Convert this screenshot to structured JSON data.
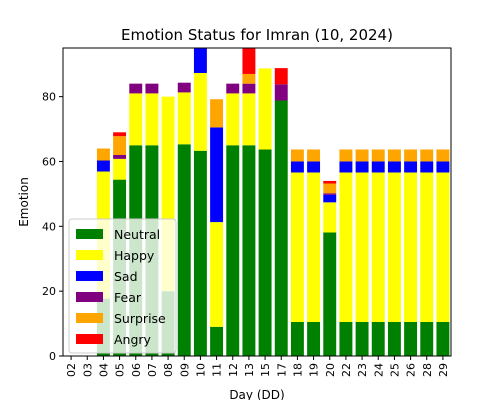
{
  "chart_data": {
    "type": "bar",
    "stacked": true,
    "title": "Emotion Status for Imran (10, 2024)",
    "xlabel": "Day (DD)",
    "ylabel": "Emotion",
    "categories": [
      "02",
      "03",
      "04",
      "05",
      "06",
      "07",
      "08",
      "09",
      "10",
      "11",
      "12",
      "13",
      "15",
      "17",
      "18",
      "19",
      "20",
      "22",
      "23",
      "24",
      "25",
      "26",
      "28",
      "29"
    ],
    "ylim": [
      0,
      95
    ],
    "yticks": [
      0,
      20,
      40,
      60,
      80
    ],
    "grid": false,
    "legend_position": "lower-left",
    "series": [
      {
        "name": "Neutral",
        "color": "#008000",
        "values": [
          0,
          0,
          17.7,
          54.4,
          65,
          65,
          20,
          65.3,
          63.3,
          9,
          65,
          65,
          63.7,
          78.8,
          10.5,
          10.5,
          38.1,
          10.5,
          10.5,
          10.5,
          10.5,
          10.5,
          10.5,
          10.5
        ]
      },
      {
        "name": "Happy",
        "color": "#ffff00",
        "values": [
          0,
          0,
          39.2,
          6.4,
          16,
          16,
          60,
          16,
          24,
          32.3,
          16,
          16,
          25,
          0,
          46.1,
          46.1,
          9.3,
          46.1,
          46.1,
          46.1,
          46.1,
          46.1,
          46.1,
          46.1
        ]
      },
      {
        "name": "Sad",
        "color": "#0000ff",
        "values": [
          0,
          0,
          3.4,
          0,
          0,
          0,
          0,
          0,
          8,
          29.2,
          0,
          0,
          0,
          0,
          3.4,
          3.4,
          2.3,
          3.4,
          3.4,
          3.4,
          3.4,
          3.4,
          3.4,
          3.4
        ]
      },
      {
        "name": "Fear",
        "color": "#800080",
        "values": [
          0,
          0,
          0,
          1.2,
          3,
          3,
          0,
          3,
          0,
          0,
          3,
          3,
          0,
          5,
          0,
          0,
          0.5,
          0,
          0,
          0,
          0,
          0,
          0,
          0
        ]
      },
      {
        "name": "Surprise",
        "color": "#ffa500",
        "values": [
          0,
          0,
          3.7,
          5.8,
          0,
          0,
          0,
          0,
          0,
          8.7,
          0,
          3,
          0,
          0,
          3.7,
          3.7,
          3,
          3.7,
          3.7,
          3.7,
          3.7,
          3.7,
          3.7,
          3.7
        ]
      },
      {
        "name": "Angry",
        "color": "#ff0000",
        "values": [
          0,
          0,
          0,
          1.2,
          0,
          0,
          0,
          0,
          0,
          0,
          0,
          10,
          0,
          5,
          0,
          0,
          0.8,
          0,
          0,
          0,
          0,
          0,
          0,
          0
        ]
      }
    ]
  }
}
